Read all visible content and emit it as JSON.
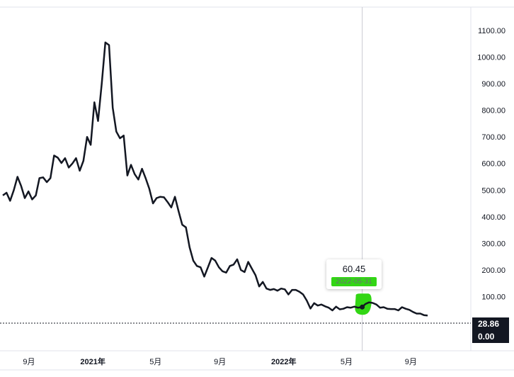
{
  "chart_data": {
    "type": "line",
    "y_axis": {
      "ticks": [
        "1100.00",
        "1000.00",
        "900.00",
        "800.00",
        "700.00",
        "600.00",
        "500.00",
        "400.00",
        "300.00",
        "200.00",
        "100.00"
      ],
      "range": [
        0,
        1150
      ],
      "position": "right"
    },
    "x_axis": {
      "ticks": [
        {
          "label": "9月",
          "date": "2020-09",
          "bold": false
        },
        {
          "label": "2021年",
          "date": "2021-01",
          "bold": true
        },
        {
          "label": "5月",
          "date": "2021-05",
          "bold": false
        },
        {
          "label": "9月",
          "date": "2021-09",
          "bold": false
        },
        {
          "label": "2022年",
          "date": "2022-01",
          "bold": true
        },
        {
          "label": "5月",
          "date": "2022-05",
          "bold": false
        },
        {
          "label": "9月",
          "date": "2022-09",
          "bold": false
        }
      ]
    },
    "series": [
      {
        "color": "#131722",
        "points": [
          [
            "2020-07-13",
            480
          ],
          [
            "2020-07-20",
            490
          ],
          [
            "2020-07-27",
            460
          ],
          [
            "2020-08-03",
            500
          ],
          [
            "2020-08-10",
            550
          ],
          [
            "2020-08-17",
            515
          ],
          [
            "2020-08-24",
            470
          ],
          [
            "2020-08-31",
            495
          ],
          [
            "2020-09-07",
            465
          ],
          [
            "2020-09-14",
            480
          ],
          [
            "2020-09-21",
            545
          ],
          [
            "2020-09-28",
            548
          ],
          [
            "2020-10-05",
            530
          ],
          [
            "2020-10-12",
            545
          ],
          [
            "2020-10-19",
            630
          ],
          [
            "2020-10-26",
            622
          ],
          [
            "2020-11-02",
            602
          ],
          [
            "2020-11-09",
            620
          ],
          [
            "2020-11-16",
            585
          ],
          [
            "2020-11-23",
            600
          ],
          [
            "2020-11-30",
            620
          ],
          [
            "2020-12-07",
            573
          ],
          [
            "2020-12-14",
            610
          ],
          [
            "2020-12-21",
            700
          ],
          [
            "2020-12-28",
            670
          ],
          [
            "2021-01-04",
            830
          ],
          [
            "2021-01-11",
            760
          ],
          [
            "2021-01-18",
            900
          ],
          [
            "2021-01-25",
            1055
          ],
          [
            "2021-02-01",
            1045
          ],
          [
            "2021-02-08",
            810
          ],
          [
            "2021-02-15",
            720
          ],
          [
            "2021-02-22",
            695
          ],
          [
            "2021-03-01",
            705
          ],
          [
            "2021-03-08",
            555
          ],
          [
            "2021-03-15",
            595
          ],
          [
            "2021-03-22",
            560
          ],
          [
            "2021-03-29",
            540
          ],
          [
            "2021-04-05",
            580
          ],
          [
            "2021-04-12",
            545
          ],
          [
            "2021-04-19",
            505
          ],
          [
            "2021-04-26",
            450
          ],
          [
            "2021-05-03",
            470
          ],
          [
            "2021-05-10",
            475
          ],
          [
            "2021-05-17",
            473
          ],
          [
            "2021-05-24",
            455
          ],
          [
            "2021-05-31",
            435
          ],
          [
            "2021-06-07",
            475
          ],
          [
            "2021-06-14",
            420
          ],
          [
            "2021-06-21",
            370
          ],
          [
            "2021-06-28",
            360
          ],
          [
            "2021-07-05",
            285
          ],
          [
            "2021-07-12",
            235
          ],
          [
            "2021-07-19",
            215
          ],
          [
            "2021-07-26",
            210
          ],
          [
            "2021-08-02",
            175
          ],
          [
            "2021-08-09",
            210
          ],
          [
            "2021-08-16",
            245
          ],
          [
            "2021-08-23",
            235
          ],
          [
            "2021-08-30",
            210
          ],
          [
            "2021-09-06",
            195
          ],
          [
            "2021-09-13",
            190
          ],
          [
            "2021-09-20",
            215
          ],
          [
            "2021-09-27",
            220
          ],
          [
            "2021-10-04",
            240
          ],
          [
            "2021-10-11",
            200
          ],
          [
            "2021-10-18",
            192
          ],
          [
            "2021-10-25",
            230
          ],
          [
            "2021-11-01",
            205
          ],
          [
            "2021-11-08",
            180
          ],
          [
            "2021-11-15",
            138
          ],
          [
            "2021-11-22",
            155
          ],
          [
            "2021-11-29",
            130
          ],
          [
            "2021-12-06",
            125
          ],
          [
            "2021-12-13",
            128
          ],
          [
            "2021-12-20",
            122
          ],
          [
            "2021-12-27",
            130
          ],
          [
            "2022-01-03",
            127
          ],
          [
            "2022-01-10",
            108
          ],
          [
            "2022-01-17",
            125
          ],
          [
            "2022-01-24",
            125
          ],
          [
            "2022-01-31",
            118
          ],
          [
            "2022-02-07",
            108
          ],
          [
            "2022-02-14",
            85
          ],
          [
            "2022-02-21",
            55
          ],
          [
            "2022-02-28",
            75
          ],
          [
            "2022-03-07",
            66
          ],
          [
            "2022-03-14",
            70
          ],
          [
            "2022-03-21",
            63
          ],
          [
            "2022-03-28",
            58
          ],
          [
            "2022-04-04",
            48
          ],
          [
            "2022-04-11",
            62
          ],
          [
            "2022-04-18",
            52
          ],
          [
            "2022-04-25",
            54
          ],
          [
            "2022-05-02",
            60
          ],
          [
            "2022-05-09",
            58
          ],
          [
            "2022-05-16",
            62
          ],
          [
            "2022-05-23",
            58
          ],
          [
            "2022-05-31",
            60.45
          ],
          [
            "2022-06-06",
            72
          ],
          [
            "2022-06-13",
            78
          ],
          [
            "2022-06-20",
            76
          ],
          [
            "2022-06-27",
            70
          ],
          [
            "2022-07-04",
            58
          ],
          [
            "2022-07-11",
            60
          ],
          [
            "2022-07-18",
            54
          ],
          [
            "2022-07-25",
            53
          ],
          [
            "2022-08-01",
            53
          ],
          [
            "2022-08-08",
            48
          ],
          [
            "2022-08-15",
            60
          ],
          [
            "2022-08-22",
            54
          ],
          [
            "2022-08-29",
            50
          ],
          [
            "2022-09-05",
            42
          ],
          [
            "2022-09-12",
            36
          ],
          [
            "2022-09-19",
            36
          ],
          [
            "2022-09-26",
            30
          ],
          [
            "2022-10-03",
            28.86
          ]
        ]
      }
    ],
    "crosshair": {
      "date": "2022-05-31",
      "value": "60.45",
      "date_label": "2022-05-31",
      "highlight_color": "#32d614"
    },
    "last_value": {
      "label": "28.86",
      "value": 28.86
    },
    "zero_label": "0.00",
    "grid": false
  }
}
